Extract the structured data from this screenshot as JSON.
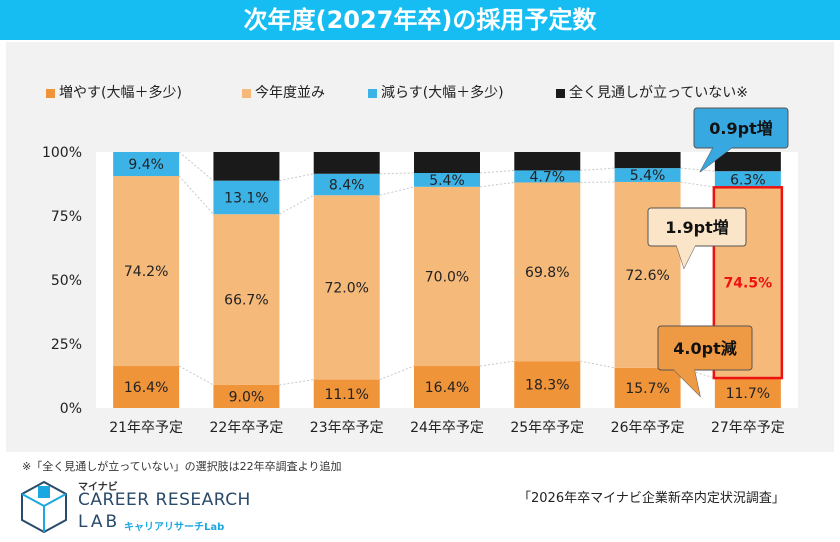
{
  "title": "次年度(2027年卒)の採用予定数",
  "colors": {
    "increase": "#f0943a",
    "same": "#f5b97a",
    "decrease": "#3cb3e6",
    "uncertain": "#1a1a1a",
    "highlight": "#ee1111",
    "callout": "#ee9a44",
    "callout_blue": "#38a8e0",
    "callout_cream": "#fbe5c8",
    "title_bg": "#15bdf2"
  },
  "chart_data": {
    "type": "bar",
    "stacked": true,
    "categories": [
      "21年卒予定",
      "22年卒予定",
      "23年卒予定",
      "24年卒予定",
      "25年卒予定",
      "26年卒予定",
      "27年卒予定"
    ],
    "series": [
      {
        "name": "増やす(大幅＋多少)",
        "values": [
          16.4,
          9.0,
          11.1,
          16.4,
          18.3,
          15.7,
          11.7
        ],
        "labels": [
          "16.4%",
          "9.0%",
          "11.1%",
          "16.4%",
          "18.3%",
          "15.7%",
          "11.7%"
        ]
      },
      {
        "name": "今年度並み",
        "values": [
          74.2,
          66.7,
          72.0,
          70.0,
          69.8,
          72.6,
          74.5
        ],
        "labels": [
          "74.2%",
          "66.7%",
          "72.0%",
          "70.0%",
          "69.8%",
          "72.6%",
          "74.5%"
        ]
      },
      {
        "name": "減らす(大幅＋多少)",
        "values": [
          9.4,
          13.1,
          8.4,
          5.4,
          4.7,
          5.4,
          6.3
        ],
        "labels": [
          "9.4%",
          "13.1%",
          "8.4%",
          "5.4%",
          "4.7%",
          "5.4%",
          "6.3%"
        ]
      },
      {
        "name": "全く見通しが立っていない※",
        "values": [
          0,
          11.2,
          8.5,
          8.2,
          7.2,
          6.3,
          7.5
        ],
        "labels": [
          "",
          "",
          "",
          "",
          "",
          "",
          ""
        ]
      }
    ],
    "y_ticks": [
      "0%",
      "25%",
      "50%",
      "75%",
      "100%"
    ],
    "ylim": [
      0,
      100
    ],
    "annotations": [
      "0.9pt増",
      "1.9pt増",
      "4.0pt減"
    ],
    "highlight_category": "27年卒予定"
  },
  "footnote": "※「全く見通しが立っていない」の選択肢は22年卒調査より追加",
  "source": "「2026年卒マイナビ企業新卒内定状況調査」",
  "logo": {
    "small": "マイナビ",
    "main": "CAREER RESEARCH",
    "lab": "LAB",
    "sub": "キャリアリサーチLab"
  }
}
